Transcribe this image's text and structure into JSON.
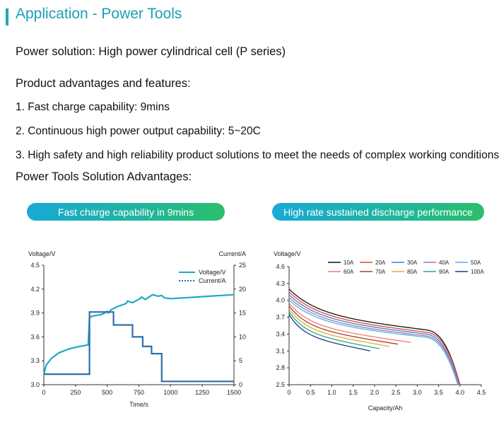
{
  "page": {
    "title": "Application - Power Tools",
    "solution": "Power solution: High power cylindrical cell (P series)",
    "advantages_heading": "Product advantages and features:",
    "features": [
      "1. Fast charge capability: 9mins",
      "2. Continuous high power output capability: 5~20C",
      "3. High safety and high reliability product solutions to meet the needs of complex working conditions"
    ],
    "solution_heading": "Power Tools Solution Advantages:",
    "pill_left": "Fast charge capability in 9mins",
    "pill_right": "High rate sustained discharge performance"
  },
  "colors": {
    "accent": "#1aa0b5",
    "line_voltage": "#1fa9c4",
    "line_current": "#2f6fa8"
  },
  "chart_data": [
    {
      "type": "line",
      "xlabel": "Time/s",
      "ylabel": "Voltage/V",
      "y2label": "Current/A",
      "xlim": [
        0,
        1500
      ],
      "ylim": [
        3.0,
        4.5
      ],
      "y2lim": [
        0,
        25
      ],
      "x_ticks": [
        "0",
        "250",
        "500",
        "750",
        "1000",
        "1250",
        "1500"
      ],
      "y_ticks": [
        "3.0",
        "3.3",
        "3.6",
        "3.9",
        "4.2",
        "4.5"
      ],
      "y2_ticks": [
        "0",
        "5",
        "10",
        "15",
        "20",
        "25"
      ],
      "legend_position": "top-right",
      "series": [
        {
          "name": "Voltage/V",
          "axis": "left",
          "style": "solid",
          "x": [
            0,
            20,
            60,
            120,
            200,
            280,
            350,
            360,
            380,
            450,
            480,
            500,
            510,
            530,
            580,
            650,
            660,
            700,
            760,
            770,
            800,
            850,
            860,
            900,
            930,
            950,
            1000,
            1100,
            1200,
            1300,
            1400,
            1500
          ],
          "y": [
            3.13,
            3.25,
            3.33,
            3.4,
            3.45,
            3.48,
            3.5,
            3.84,
            3.86,
            3.88,
            3.9,
            3.92,
            3.9,
            3.94,
            3.98,
            4.02,
            4.05,
            4.03,
            4.08,
            4.1,
            4.07,
            4.12,
            4.13,
            4.11,
            4.12,
            4.09,
            4.08,
            4.09,
            4.1,
            4.11,
            4.12,
            4.13
          ]
        },
        {
          "name": "Current/A",
          "axis": "right",
          "style": "step",
          "x": [
            0,
            360,
            360,
            550,
            550,
            700,
            700,
            780,
            780,
            850,
            850,
            930,
            930,
            1500
          ],
          "y": [
            2.2,
            2.2,
            15.2,
            15.2,
            12.5,
            12.5,
            10,
            10,
            8,
            8,
            6.5,
            6.5,
            0.7,
            0.7
          ]
        }
      ]
    },
    {
      "type": "line",
      "xlabel": "Capacity/Ah",
      "ylabel": "Voltage/V",
      "xlim": [
        0,
        4.5
      ],
      "ylim": [
        2.5,
        4.6
      ],
      "x_ticks": [
        "0",
        "0.5",
        "1.0",
        "1.5",
        "2.0",
        "2.5",
        "3.0",
        "3.5",
        "4.0",
        "4.5"
      ],
      "y_ticks": [
        "2.5",
        "2.8",
        "3.1",
        "3.4",
        "3.7",
        "4.0",
        "4.3",
        "4.6"
      ],
      "legend_position": "top",
      "series": [
        {
          "name": "10A",
          "color": "#111111",
          "end": 4.0,
          "v0": 4.2,
          "v1": 3.4
        },
        {
          "name": "20A",
          "color": "#e0443a",
          "end": 4.0,
          "v0": 4.15,
          "v1": 3.36
        },
        {
          "name": "30A",
          "color": "#4a7fb8",
          "end": 3.98,
          "v0": 4.1,
          "v1": 3.33
        },
        {
          "name": "40A",
          "color": "#9a79bf",
          "end": 3.97,
          "v0": 4.05,
          "v1": 3.3
        },
        {
          "name": "50A",
          "color": "#5ab0e0",
          "end": 3.95,
          "v0": 4.0,
          "v1": 3.28
        },
        {
          "name": "60A",
          "color": "#f07f6e",
          "end": 2.85,
          "v0": 3.95,
          "v1": 3.25
        },
        {
          "name": "70A",
          "color": "#a0452e",
          "end": 2.55,
          "v0": 3.9,
          "v1": 3.22
        },
        {
          "name": "80A",
          "color": "#f0a830",
          "end": 2.35,
          "v0": 3.85,
          "v1": 3.18
        },
        {
          "name": "90A",
          "color": "#1fae8c",
          "end": 2.12,
          "v0": 3.8,
          "v1": 3.14
        },
        {
          "name": "100A",
          "color": "#1c3c80",
          "end": 1.9,
          "v0": 3.75,
          "v1": 3.1
        }
      ]
    }
  ]
}
